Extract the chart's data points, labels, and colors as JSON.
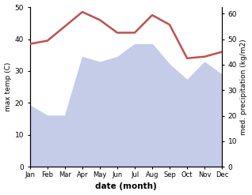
{
  "months": [
    "Jan",
    "Feb",
    "Mar",
    "Apr",
    "May",
    "Jun",
    "Jul",
    "Aug",
    "Sep",
    "Oct",
    "Nov",
    "Dec"
  ],
  "temperature": [
    38.5,
    39.5,
    44.0,
    48.5,
    46.0,
    42.0,
    42.0,
    47.5,
    44.5,
    34.0,
    34.5,
    36.0
  ],
  "precipitation": [
    24.0,
    20.0,
    20.0,
    43.0,
    41.0,
    43.0,
    48.0,
    48.0,
    40.0,
    34.0,
    41.0,
    36.0
  ],
  "temp_color": "#c0504d",
  "precip_fill_color": "#c5cce8",
  "precip_edge_color": "#aab4e0",
  "ylabel_left": "max temp (C)",
  "ylabel_right": "med. precipitation (kg/m2)",
  "xlabel": "date (month)",
  "ylim_left": [
    0,
    50
  ],
  "ylim_right": [
    0,
    62.5
  ],
  "bg_color": "#ffffff"
}
